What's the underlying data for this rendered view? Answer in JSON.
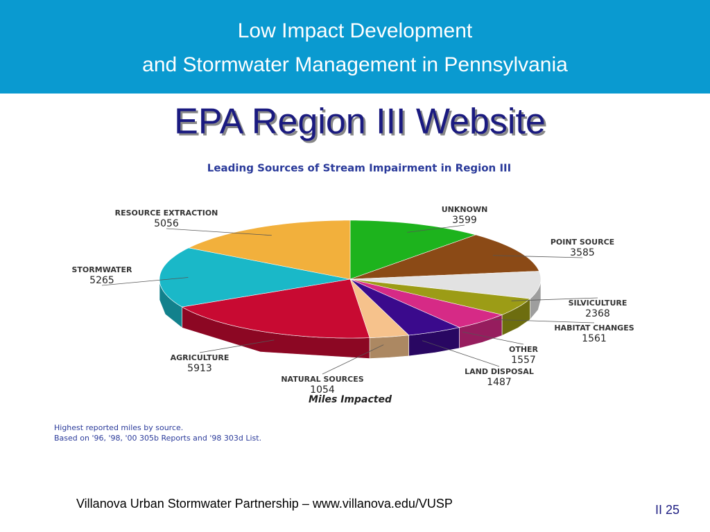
{
  "header": {
    "line1": "Low Impact Development",
    "line2": "and Stormwater Management in Pennsylvania"
  },
  "slide_title": "EPA Region III Website",
  "chart_data": {
    "type": "pie",
    "title": "Leading Sources of Stream Impairment in Region III",
    "caption": "Miles Impacted",
    "categories": [
      "UNKNOWN",
      "POINT SOURCE",
      "SILVICULTURE",
      "HABITAT CHANGES",
      "OTHER",
      "LAND DISPOSAL",
      "NATURAL SOURCES",
      "AGRICULTURE",
      "STORMWATER",
      "RESOURCE EXTRACTION"
    ],
    "values": [
      3599,
      3585,
      2368,
      1561,
      1557,
      1487,
      1054,
      5913,
      5265,
      5056
    ],
    "colors": [
      "#1db31d",
      "#8b4a16",
      "#e2e2e2",
      "#9c9c16",
      "#d62a86",
      "#3a0a8c",
      "#f6c28c",
      "#c80a32",
      "#1ab8c8",
      "#f2b03c"
    ]
  },
  "notes": [
    "Highest reported miles by source.",
    "Based on '96, '98, '00 305b Reports and '98 303d List."
  ],
  "footer": {
    "credit": "Villanova Urban Stormwater Partnership – www.villanova.edu/VUSP",
    "page": "II 25"
  }
}
